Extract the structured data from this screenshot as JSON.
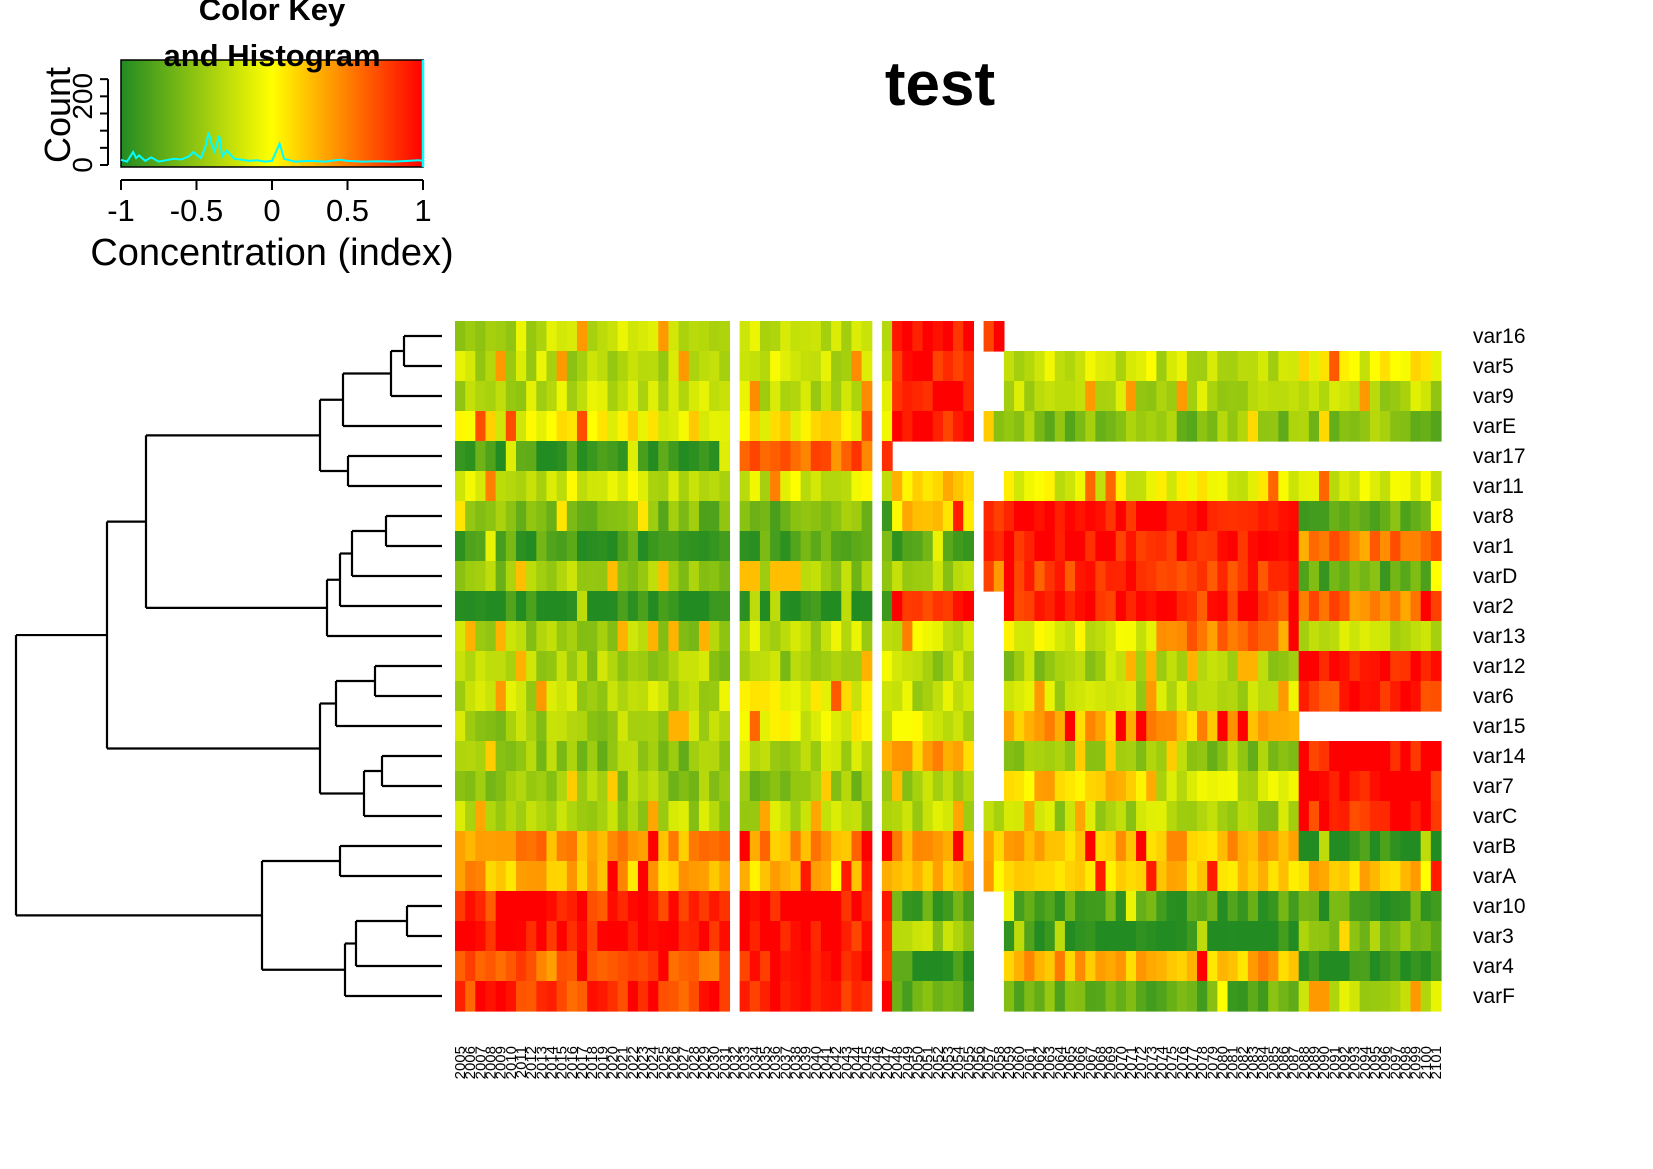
{
  "chart_data": {
    "type": "heatmap",
    "title": "test",
    "color_key": {
      "title_line1": "Color Key",
      "title_line2": "and Histogram",
      "xlabel": "Concentration (index)",
      "ylabel": "Count",
      "xticks": [
        "-1",
        "-0.5",
        "0",
        "0.5",
        "1"
      ],
      "xtick_values": [
        -1,
        -0.5,
        0,
        0.5,
        1
      ],
      "yticks": [
        "0",
        "200"
      ],
      "ytick_values": [
        0,
        200
      ],
      "range": [
        -1,
        1
      ],
      "palette": [
        "#228B22",
        "#FFFF00",
        "#FF0000"
      ],
      "histogram_color": "#00FFFF",
      "histogram_ymax": 300,
      "histogram": [
        [
          -1.0,
          15
        ],
        [
          -0.96,
          10
        ],
        [
          -0.92,
          38
        ],
        [
          -0.9,
          20
        ],
        [
          -0.88,
          28
        ],
        [
          -0.84,
          12
        ],
        [
          -0.8,
          22
        ],
        [
          -0.75,
          10
        ],
        [
          -0.7,
          14
        ],
        [
          -0.65,
          18
        ],
        [
          -0.6,
          16
        ],
        [
          -0.55,
          25
        ],
        [
          -0.52,
          38
        ],
        [
          -0.5,
          30
        ],
        [
          -0.47,
          20
        ],
        [
          -0.44,
          55
        ],
        [
          -0.42,
          95
        ],
        [
          -0.4,
          60
        ],
        [
          -0.38,
          40
        ],
        [
          -0.35,
          85
        ],
        [
          -0.33,
          25
        ],
        [
          -0.3,
          42
        ],
        [
          -0.25,
          18
        ],
        [
          -0.2,
          15
        ],
        [
          -0.15,
          12
        ],
        [
          -0.1,
          14
        ],
        [
          -0.05,
          10
        ],
        [
          0.0,
          12
        ],
        [
          0.05,
          62
        ],
        [
          0.08,
          18
        ],
        [
          0.15,
          10
        ],
        [
          0.25,
          12
        ],
        [
          0.35,
          10
        ],
        [
          0.45,
          15
        ],
        [
          0.5,
          12
        ],
        [
          0.6,
          10
        ],
        [
          0.7,
          11
        ],
        [
          0.8,
          10
        ],
        [
          0.9,
          12
        ],
        [
          0.97,
          14
        ],
        [
          1.0,
          12
        ]
      ]
    },
    "rows": [
      "var16",
      "var5",
      "var9",
      "varE",
      "var17",
      "var11",
      "var8",
      "var1",
      "varD",
      "var2",
      "var13",
      "var12",
      "var6",
      "var15",
      "var14",
      "var7",
      "varC",
      "varB",
      "varA",
      "var10",
      "var3",
      "var4",
      "varF"
    ],
    "n_columns": 97,
    "column_labels": [
      "2005",
      "2006",
      "2007",
      "2008",
      "2009",
      "2010",
      "2011",
      "2012",
      "2013",
      "2014",
      "2015",
      "2016",
      "2017",
      "2018",
      "2019",
      "2020",
      "2021",
      "2022",
      "2023",
      "2024",
      "2025",
      "2026",
      "2027",
      "2028",
      "2029",
      "2030",
      "2031",
      "2032",
      "2033",
      "2034",
      "2035",
      "2036",
      "2037",
      "2038",
      "2039",
      "2040",
      "2041",
      "2042",
      "2043",
      "2044",
      "2045",
      "2046",
      "2047",
      "2048",
      "2049",
      "2050",
      "2051",
      "2052",
      "2053",
      "2054",
      "2055",
      "2056",
      "2057",
      "2058",
      "2059",
      "2060",
      "2061",
      "2062",
      "2063",
      "2064",
      "2065",
      "2066",
      "2067",
      "2068",
      "2069",
      "2070",
      "2071",
      "2072",
      "2073",
      "2074",
      "2075",
      "2076",
      "2077",
      "2078",
      "2079",
      "2080",
      "2081",
      "2082",
      "2083",
      "2084",
      "2085",
      "2086",
      "2087",
      "2088",
      "2089",
      "2090",
      "2091",
      "2092",
      "2093",
      "2094",
      "2095",
      "2096",
      "2097",
      "2098",
      "2099",
      "2100",
      "2101"
    ],
    "column_groups": [
      {
        "start": 0,
        "end": 27,
        "missing_rows": []
      },
      {
        "start": 28,
        "end": 40,
        "missing_rows": []
      },
      {
        "start": 41,
        "end": 42,
        "missing_rows": []
      },
      {
        "start": 43,
        "end": 50,
        "missing_rows": []
      },
      {
        "start": 51,
        "end": 53,
        "missing_rows": [
          4
        ]
      },
      {
        "start": 54,
        "end": 68,
        "missing_rows": [
          4
        ]
      },
      {
        "start": 69,
        "end": 82,
        "missing_rows": [
          4
        ]
      },
      {
        "start": 83,
        "end": 96,
        "missing_rows": [
          0,
          4,
          13
        ]
      }
    ],
    "missing_columns": [
      27,
      41,
      51
    ],
    "block_values": [
      [
        -0.3,
        -0.3,
        -0.35,
        0.95,
        0.95,
        null,
        null,
        null
      ],
      [
        -0.3,
        -0.25,
        -0.3,
        0.95,
        null,
        -0.2,
        -0.3,
        -0.05
      ],
      [
        -0.3,
        -0.25,
        -0.3,
        0.95,
        null,
        -0.3,
        -0.3,
        -0.3
      ],
      [
        0.0,
        0.0,
        0.0,
        0.95,
        -0.5,
        -0.55,
        -0.55,
        -0.55
      ],
      [
        -0.85,
        0.6,
        0.95,
        null,
        null,
        null,
        null,
        null
      ],
      [
        -0.2,
        -0.2,
        -0.3,
        0.2,
        null,
        -0.1,
        -0.1,
        -0.1
      ],
      [
        -0.6,
        -0.6,
        -0.7,
        0.2,
        0.95,
        0.95,
        0.95,
        -0.7
      ],
      [
        -0.8,
        -0.8,
        -0.8,
        -0.8,
        0.95,
        0.95,
        0.95,
        0.5
      ],
      [
        -0.45,
        -0.45,
        -0.45,
        -0.45,
        0.6,
        0.8,
        0.8,
        -0.7
      ],
      [
        -1.0,
        -1.0,
        -1.0,
        0.9,
        null,
        0.85,
        0.85,
        0.55
      ],
      [
        -0.4,
        -0.3,
        -0.4,
        -0.2,
        null,
        -0.15,
        0.5,
        -0.3
      ],
      [
        -0.4,
        -0.4,
        -0.1,
        -0.4,
        null,
        -0.4,
        -0.4,
        0.85
      ],
      [
        -0.3,
        -0.05,
        -0.3,
        -0.3,
        null,
        -0.3,
        -0.3,
        0.85
      ],
      [
        -0.4,
        -0.1,
        -0.3,
        -0.2,
        null,
        0.3,
        0.3,
        null
      ],
      [
        -0.5,
        -0.3,
        -0.4,
        0.3,
        null,
        -0.5,
        -0.5,
        0.95
      ],
      [
        -0.5,
        -0.5,
        -0.5,
        -0.45,
        null,
        0.2,
        -0.2,
        0.95
      ],
      [
        -0.35,
        -0.35,
        -0.35,
        -0.35,
        -0.35,
        -0.35,
        -0.35,
        0.9
      ],
      [
        0.4,
        0.4,
        0.4,
        0.3,
        0.3,
        0.3,
        0.3,
        -1.0
      ],
      [
        0.3,
        0.2,
        0.3,
        0.2,
        0.2,
        0.2,
        0.2,
        0.2
      ],
      [
        0.85,
        0.95,
        0.95,
        -0.8,
        null,
        -0.8,
        -0.8,
        -0.8
      ],
      [
        0.95,
        0.95,
        0.95,
        -0.4,
        null,
        -1.0,
        -1.0,
        -0.55
      ],
      [
        0.6,
        0.95,
        0.95,
        -0.9,
        null,
        0.3,
        0.3,
        -1.0
      ],
      [
        0.8,
        0.95,
        0.95,
        -0.7,
        null,
        -0.7,
        -0.7,
        -0.3
      ]
    ],
    "row_dendrogram_order": [
      0,
      1,
      2,
      3,
      4,
      5,
      6,
      7,
      8,
      9,
      10,
      11,
      12,
      13,
      14,
      15,
      16,
      17,
      18,
      19,
      20,
      21,
      22
    ]
  }
}
